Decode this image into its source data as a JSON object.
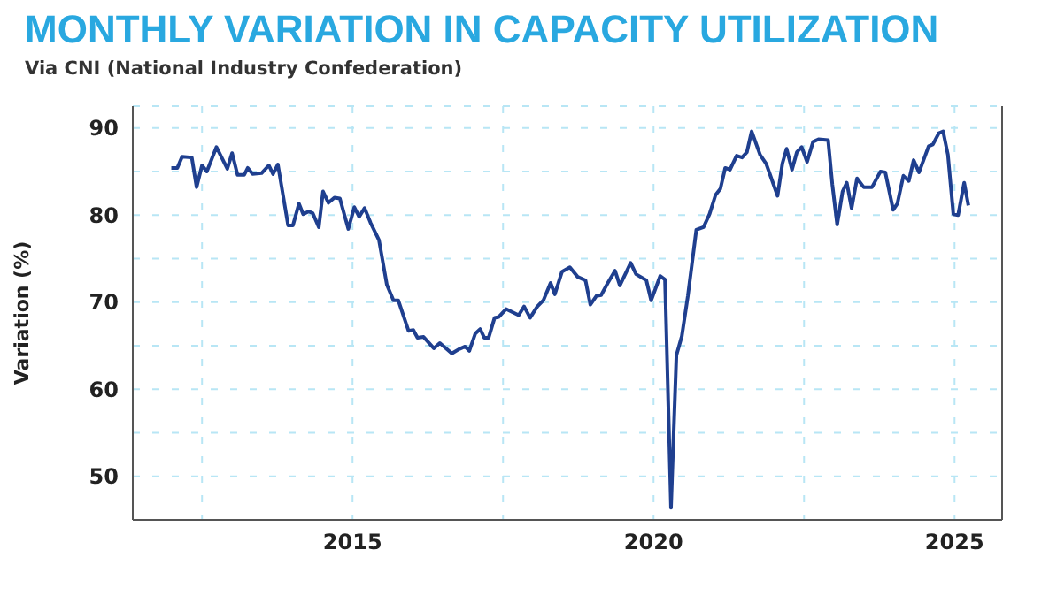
{
  "chart_data": {
    "type": "line",
    "title": "MONTHLY VARIATION IN CAPACITY UTILIZATION",
    "subtitle": "Via CNI (National Industry Confederation)",
    "ylabel": "Variation (%)",
    "x": [
      2011.99,
      2012.09,
      2012.17,
      2012.33,
      2012.41,
      2012.5,
      2012.58,
      2012.74,
      2012.92,
      2013.0,
      2013.09,
      2013.2,
      2013.26,
      2013.34,
      2013.49,
      2013.61,
      2013.68,
      2013.76,
      2013.93,
      2014.01,
      2014.11,
      2014.18,
      2014.27,
      2014.34,
      2014.44,
      2014.51,
      2014.6,
      2014.7,
      2014.79,
      2014.93,
      2015.03,
      2015.11,
      2015.2,
      2015.3,
      2015.44,
      2015.57,
      2015.68,
      2015.76,
      2015.93,
      2016.01,
      2016.08,
      2016.18,
      2016.35,
      2016.45,
      2016.65,
      2016.77,
      2016.87,
      2016.94,
      2017.04,
      2017.12,
      2017.19,
      2017.26,
      2017.36,
      2017.43,
      2017.55,
      2017.76,
      2017.85,
      2017.95,
      2018.07,
      2018.17,
      2018.29,
      2018.36,
      2018.48,
      2018.61,
      2018.74,
      2018.87,
      2018.95,
      2019.05,
      2019.13,
      2019.24,
      2019.36,
      2019.44,
      2019.62,
      2019.71,
      2019.88,
      2019.96,
      2020.11,
      2020.19,
      2020.29,
      2020.38,
      2020.47,
      2020.57,
      2020.71,
      2020.83,
      2020.93,
      2021.03,
      2021.11,
      2021.19,
      2021.27,
      2021.38,
      2021.47,
      2021.55,
      2021.63,
      2021.77,
      2021.87,
      2022.06,
      2022.14,
      2022.21,
      2022.3,
      2022.38,
      2022.46,
      2022.55,
      2022.65,
      2022.74,
      2022.9,
      2022.97,
      2023.05,
      2023.14,
      2023.21,
      2023.29,
      2023.38,
      2023.49,
      2023.63,
      2023.77,
      2023.85,
      2023.98,
      2024.05,
      2024.15,
      2024.24,
      2024.32,
      2024.41,
      2024.57,
      2024.64,
      2024.74,
      2024.81,
      2024.89,
      2024.98,
      2025.06,
      2025.16,
      2025.23
    ],
    "values": [
      85.4,
      85.4,
      86.7,
      86.6,
      83.2,
      85.7,
      85.0,
      87.8,
      85.3,
      87.1,
      84.6,
      84.6,
      85.4,
      84.7,
      84.8,
      85.7,
      84.7,
      85.8,
      78.8,
      78.8,
      81.3,
      80.1,
      80.4,
      80.2,
      78.6,
      82.7,
      81.4,
      82.0,
      81.9,
      78.4,
      80.9,
      79.8,
      80.8,
      79.1,
      77.1,
      72.0,
      70.2,
      70.2,
      66.7,
      66.8,
      65.9,
      66.0,
      64.7,
      65.3,
      64.1,
      64.6,
      64.9,
      64.4,
      66.4,
      66.9,
      65.9,
      65.9,
      68.2,
      68.3,
      69.2,
      68.5,
      69.5,
      68.2,
      69.5,
      70.2,
      72.2,
      70.9,
      73.5,
      74.0,
      72.9,
      72.5,
      69.7,
      70.7,
      70.8,
      72.2,
      73.6,
      71.9,
      74.5,
      73.2,
      72.5,
      70.2,
      73.0,
      72.6,
      46.4,
      63.9,
      66.1,
      70.7,
      78.3,
      78.6,
      80.1,
      82.3,
      83.0,
      85.4,
      85.2,
      86.8,
      86.6,
      87.2,
      89.6,
      86.9,
      85.9,
      82.2,
      85.9,
      87.6,
      85.2,
      87.2,
      87.8,
      86.1,
      88.4,
      88.7,
      88.6,
      83.5,
      78.9,
      82.7,
      83.7,
      80.8,
      84.2,
      83.2,
      83.2,
      85.0,
      84.9,
      80.6,
      81.3,
      84.5,
      83.9,
      86.3,
      84.9,
      87.9,
      88.1,
      89.4,
      89.6,
      86.9,
      80.1,
      80.0,
      83.7,
      81.1
    ],
    "color": "#1f3f8f",
    "xlim": [
      2011.35,
      2025.79
    ],
    "ylim": [
      45,
      92.5
    ],
    "xticks": [
      {
        "value": 2012.5,
        "label": null
      },
      2015,
      {
        "value": 2017.5,
        "label": null
      },
      2020,
      {
        "value": 2022.5,
        "label": null
      },
      2025
    ],
    "yticks": [
      50,
      {
        "value": 55,
        "label": null
      },
      60,
      {
        "value": 65,
        "label": null
      },
      70,
      {
        "value": 75,
        "label": null
      },
      80,
      {
        "value": 85,
        "label": null
      },
      90
    ],
    "grid": true
  }
}
